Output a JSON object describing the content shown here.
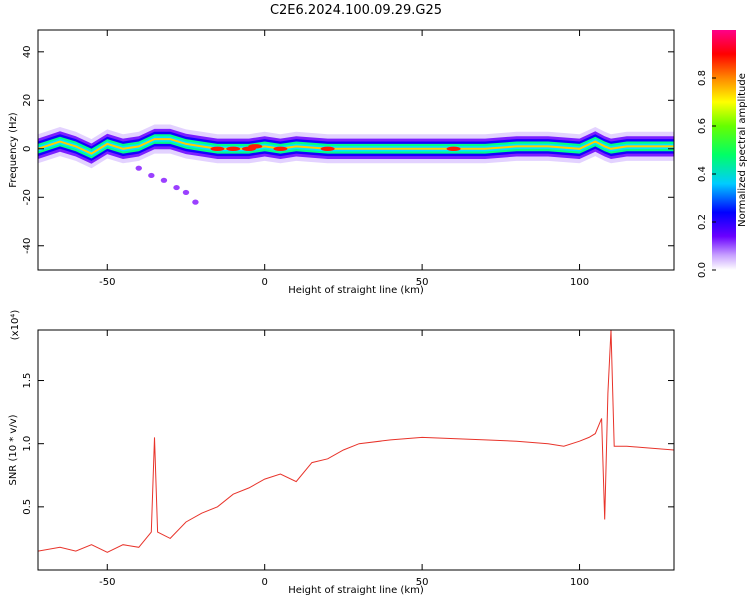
{
  "figure": {
    "title": "C2E6.2024.100.09.29.G25"
  },
  "chart_data": [
    {
      "type": "heatmap",
      "title": "C2E6.2024.100.09.29.G25",
      "xlabel": "Height of straight line (km)",
      "ylabel": "Frequency (Hz)",
      "xlim": [
        -72,
        130
      ],
      "ylim": [
        -50,
        49
      ],
      "x_ticks": [
        -50,
        0,
        50,
        100
      ],
      "y_ticks": [
        -40,
        -20,
        0,
        20,
        40
      ],
      "colorbar": {
        "label": "Normalized spectral amplitude",
        "range": [
          0,
          1
        ],
        "ticks": [
          0.0,
          0.2,
          0.4,
          0.6,
          0.8
        ],
        "colormap": "rainbow (purple→blue→cyan→green→yellow→red→magenta)"
      },
      "ridge": {
        "description": "main spectral ridge near 0 Hz",
        "x": [
          -72,
          -65,
          -60,
          -55,
          -50,
          -45,
          -40,
          -35,
          -30,
          -25,
          -20,
          -15,
          -10,
          -5,
          0,
          5,
          10,
          20,
          30,
          40,
          50,
          60,
          70,
          80,
          90,
          100,
          105,
          108,
          110,
          115,
          120,
          130
        ],
        "y": [
          0,
          3,
          1,
          -2,
          2,
          0,
          1,
          4,
          4,
          2,
          1,
          0,
          0,
          0,
          1,
          0,
          1,
          0,
          0,
          0,
          0,
          0,
          0,
          1,
          1,
          0,
          3,
          1,
          0,
          1,
          1,
          1
        ]
      },
      "tail": {
        "description": "faint diagonal streak of low amplitude",
        "x": [
          -40,
          -36,
          -32,
          -28,
          -25,
          -22
        ],
        "y": [
          -8,
          -11,
          -13,
          -16,
          -18,
          -22
        ]
      }
    },
    {
      "type": "line",
      "xlabel": "Height of straight line (km)",
      "ylabel": "SNR (10 * v/v)",
      "y_scale_label": "(x10⁴)",
      "xlim": [
        -72,
        130
      ],
      "ylim": [
        0,
        1.9
      ],
      "x_ticks": [
        -50,
        0,
        50,
        100
      ],
      "y_ticks": [
        0.5,
        1.0,
        1.5
      ],
      "series": [
        {
          "color": "#e8332a",
          "x": [
            -72,
            -65,
            -60,
            -55,
            -50,
            -45,
            -40,
            -36,
            -35,
            -34,
            -30,
            -25,
            -20,
            -15,
            -10,
            -5,
            0,
            5,
            10,
            15,
            20,
            25,
            30,
            40,
            50,
            60,
            70,
            80,
            90,
            95,
            100,
            103,
            105,
            107,
            108,
            109,
            110,
            111,
            115,
            120,
            125,
            130
          ],
          "y": [
            0.15,
            0.18,
            0.15,
            0.2,
            0.14,
            0.2,
            0.18,
            0.3,
            1.05,
            0.3,
            0.25,
            0.38,
            0.45,
            0.5,
            0.6,
            0.65,
            0.72,
            0.76,
            0.7,
            0.85,
            0.88,
            0.95,
            1.0,
            1.03,
            1.05,
            1.04,
            1.03,
            1.02,
            1.0,
            0.98,
            1.02,
            1.05,
            1.08,
            1.2,
            0.4,
            1.4,
            1.9,
            0.98,
            0.98,
            0.97,
            0.96,
            0.95
          ]
        }
      ]
    }
  ]
}
